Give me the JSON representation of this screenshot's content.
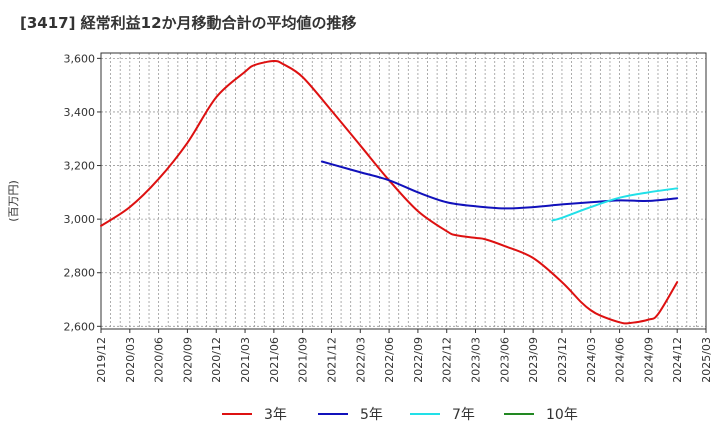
{
  "chart_data": {
    "type": "line",
    "title": "[3417]  経常利益12か月移動合計の平均値の推移",
    "ylabel": "(百万円)",
    "xlabel": "",
    "ylim": [
      2590,
      3620
    ],
    "y_ticks": [
      "2,600",
      "2,800",
      "3,000",
      "3,200",
      "3,400",
      "3,600"
    ],
    "y_tick_values": [
      2600,
      2800,
      3000,
      3200,
      3400,
      3600
    ],
    "x_ticks": [
      "2019/12",
      "2020/03",
      "2020/06",
      "2020/09",
      "2020/12",
      "2021/03",
      "2021/06",
      "2021/09",
      "2021/12",
      "2022/03",
      "2022/06",
      "2022/09",
      "2022/12",
      "2023/03",
      "2023/06",
      "2023/09",
      "2023/12",
      "2024/03",
      "2024/06",
      "2024/09",
      "2024/12",
      "2025/03"
    ],
    "grid": true,
    "legend_position": "bottom",
    "series": [
      {
        "name": "3年",
        "color": "#dd1111",
        "x": [
          "2019/12",
          "2020/03",
          "2020/06",
          "2020/09",
          "2020/12",
          "2021/03",
          "2021/04",
          "2021/06",
          "2021/07",
          "2021/09",
          "2021/12",
          "2022/03",
          "2022/06",
          "2022/09",
          "2022/12",
          "2023/01",
          "2023/03",
          "2023/04",
          "2023/06",
          "2023/09",
          "2023/12",
          "2024/02",
          "2024/03",
          "2024/04",
          "2024/06",
          "2024/07",
          "2024/09",
          "2024/10",
          "2024/12"
        ],
        "values": [
          2975,
          3045,
          3150,
          3285,
          3455,
          3550,
          3575,
          3590,
          3578,
          3530,
          3405,
          3275,
          3145,
          3030,
          2955,
          2940,
          2930,
          2925,
          2900,
          2855,
          2765,
          2690,
          2660,
          2640,
          2615,
          2612,
          2625,
          2645,
          2765
        ]
      },
      {
        "name": "5年",
        "color": "#1111bb",
        "x": [
          "2021/11",
          "2021/12",
          "2022/03",
          "2022/06",
          "2022/09",
          "2022/12",
          "2023/03",
          "2023/06",
          "2023/09",
          "2023/12",
          "2024/03",
          "2024/06",
          "2024/09",
          "2024/12"
        ],
        "values": [
          3215,
          3205,
          3175,
          3145,
          3100,
          3063,
          3048,
          3040,
          3045,
          3055,
          3063,
          3070,
          3068,
          3078
        ]
      },
      {
        "name": "7年",
        "color": "#22e0e8",
        "x": [
          "2023/11",
          "2023/12",
          "2024/03",
          "2024/06",
          "2024/09",
          "2024/12"
        ],
        "values": [
          2995,
          3005,
          3045,
          3080,
          3100,
          3115
        ]
      },
      {
        "name": "10年",
        "color": "#228822",
        "x": [],
        "values": []
      }
    ]
  }
}
